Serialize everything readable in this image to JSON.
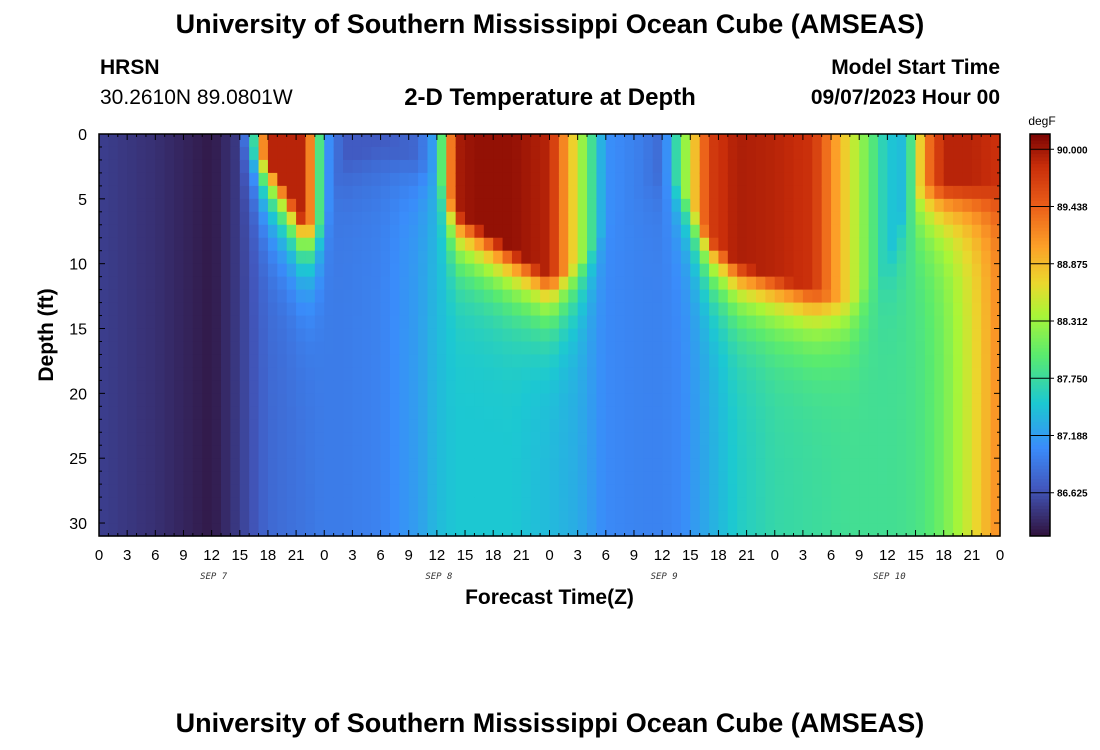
{
  "header": {
    "title": "University of Southern Mississippi Ocean Cube (AMSEAS)",
    "station_code": "HRSN",
    "station_coords": "30.2610N  89.0801W",
    "plot_title": "2-D Temperature at Depth",
    "model_start_label": "Model Start Time",
    "model_start_value": "09/07/2023 Hour 00"
  },
  "footer": {
    "title": "University of Southern Mississippi Ocean Cube (AMSEAS)"
  },
  "chart_data": {
    "type": "heatmap",
    "title": "2-D Temperature at Depth",
    "xlabel": "Forecast Time(Z)",
    "ylabel": "Depth (ft)",
    "x_range_hours": [
      0,
      96
    ],
    "y_range_ft": [
      0,
      31
    ],
    "x_tick_labels": [
      "0",
      "3",
      "6",
      "9",
      "12",
      "15",
      "18",
      "21",
      "0",
      "3",
      "6",
      "9",
      "12",
      "15",
      "18",
      "21",
      "0",
      "3",
      "6",
      "9",
      "12",
      "15",
      "18",
      "21",
      "0",
      "3",
      "6",
      "9",
      "12",
      "15",
      "18",
      "21",
      "0"
    ],
    "y_ticks": [
      0,
      5,
      10,
      15,
      20,
      25,
      30
    ],
    "day_labels": [
      {
        "label": "SEP 7",
        "hour": 12
      },
      {
        "label": "SEP 8",
        "hour": 36
      },
      {
        "label": "SEP 9",
        "hour": 60
      },
      {
        "label": "SEP 10",
        "hour": 84
      }
    ],
    "colorbar": {
      "unit": "degF",
      "min": 86.2,
      "max": 90.15,
      "tick_values": [
        90.0,
        89.438,
        88.875,
        88.312,
        87.75,
        87.188,
        86.625
      ],
      "tick_labels": [
        "90.000",
        "89.438",
        "88.875",
        "88.312",
        "87.750",
        "87.188",
        "86.625"
      ]
    },
    "surface_temperature_profile": {
      "hours": [
        0,
        6,
        12,
        14,
        16,
        18,
        22,
        24,
        26,
        30,
        34,
        36,
        38,
        40,
        44,
        48,
        51,
        54,
        58,
        60,
        62,
        65,
        68,
        72,
        76,
        80,
        84,
        86,
        88,
        90,
        93,
        96
      ],
      "values": [
        86.5,
        86.4,
        86.25,
        86.4,
        87.0,
        89.9,
        89.9,
        87.2,
        86.7,
        86.7,
        86.8,
        87.3,
        89.95,
        90.05,
        90.05,
        89.9,
        88.5,
        87.1,
        86.95,
        86.8,
        88.0,
        89.7,
        89.95,
        89.9,
        89.8,
        88.6,
        87.5,
        87.4,
        89.2,
        89.9,
        89.9,
        89.8
      ]
    },
    "bottom_temperature_profile": {
      "hours": [
        0,
        6,
        12,
        14,
        16,
        18,
        22,
        24,
        26,
        30,
        34,
        36,
        38,
        40,
        44,
        48,
        51,
        54,
        58,
        60,
        62,
        65,
        68,
        72,
        76,
        80,
        84,
        86,
        88,
        90,
        93,
        96
      ],
      "values": [
        86.5,
        86.4,
        86.25,
        86.4,
        86.6,
        86.8,
        86.9,
        86.95,
        86.95,
        87.0,
        87.2,
        87.4,
        87.5,
        87.5,
        87.5,
        87.4,
        87.3,
        87.05,
        87.0,
        87.0,
        87.05,
        87.3,
        87.55,
        87.7,
        87.75,
        87.8,
        87.8,
        87.82,
        87.9,
        88.1,
        88.6,
        89.2
      ]
    },
    "warm_layer_depth_ft_profile": {
      "hours": [
        0,
        6,
        12,
        14,
        16,
        18,
        22,
        24,
        26,
        30,
        34,
        36,
        38,
        40,
        44,
        48,
        51,
        54,
        58,
        60,
        62,
        65,
        68,
        72,
        76,
        80,
        84,
        86,
        88,
        90,
        93,
        96
      ],
      "values": [
        0,
        0,
        0,
        0,
        1,
        2,
        7,
        7,
        2,
        1,
        2,
        3,
        6,
        7,
        9,
        11,
        10,
        7,
        4,
        3,
        4,
        8,
        10,
        11,
        12,
        13,
        10,
        5,
        4,
        4,
        4,
        4
      ]
    }
  }
}
